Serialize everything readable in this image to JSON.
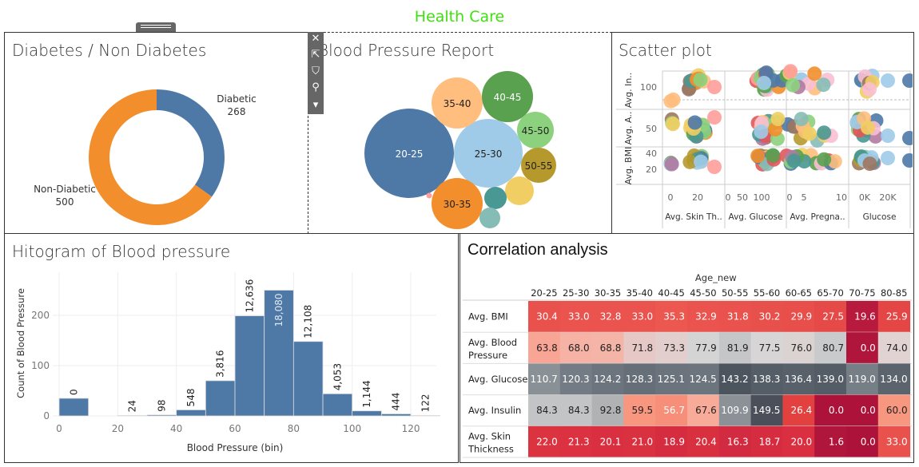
{
  "dashboard": {
    "title": "Health Care",
    "title_color": "#3ee00f"
  },
  "toolbar": {
    "icons": [
      "close-icon",
      "popout-icon",
      "filter-icon",
      "pin-icon",
      "more-dropdown-icon"
    ],
    "close": "✕",
    "popout": "⇱",
    "filter": "⛉",
    "pin": "⚲",
    "more": "▾"
  },
  "donut": {
    "title": "Diabetes / Non Diabetes",
    "slices": [
      {
        "label": "Diabetic",
        "value": 268,
        "value_text": "268",
        "color": "#4e79a7"
      },
      {
        "label": "Non-Diabetic",
        "value": 500,
        "value_text": "500",
        "color": "#f28e2b"
      }
    ]
  },
  "bubbles": {
    "title": "Blood Pressure Report",
    "items": [
      {
        "label": "20-25",
        "color": "#4e79a7",
        "text_color": "#ffffff"
      },
      {
        "label": "25-30",
        "color": "#a0cbe8",
        "text_color": "#222"
      },
      {
        "label": "30-35",
        "color": "#f28e2b",
        "text_color": "#222"
      },
      {
        "label": "35-40",
        "color": "#ffbe7d",
        "text_color": "#222"
      },
      {
        "label": "40-45",
        "color": "#59a14f",
        "text_color": "#ffffff"
      },
      {
        "label": "45-50",
        "color": "#8cd17d",
        "text_color": "#222"
      },
      {
        "label": "50-55",
        "color": "#b6992d",
        "text_color": "#222"
      },
      {
        "label": "",
        "color": "#f1ce63"
      },
      {
        "label": "",
        "color": "#499894"
      },
      {
        "label": "",
        "color": "#86bcb6"
      },
      {
        "label": "",
        "color": "#ff9d9a"
      }
    ]
  },
  "scatter": {
    "title": "Scatter plot",
    "row_labels": [
      "Avg. In..",
      "Avg. A..",
      "Avg. BMI"
    ],
    "row_ticks": [
      [
        "100"
      ],
      [
        "50"
      ],
      [
        "40",
        "20"
      ]
    ],
    "col_labels": [
      "Avg. Skin Th..",
      "Avg. Glucose",
      "Avg. Pregna..",
      "Glucose"
    ],
    "col_ticks": [
      [
        "0",
        "20"
      ],
      [
        "0",
        "50",
        "100"
      ],
      [
        "0",
        "5",
        "10"
      ],
      [
        "0K",
        "20K"
      ]
    ]
  },
  "chart_data": [
    {
      "type": "bar",
      "title": "Hitogram of Blood pressure",
      "xlabel": "Blood Pressure (bin)",
      "ylabel": "Count of Blood Pressure",
      "bin_width": 10,
      "xlim": [
        0,
        130
      ],
      "ylim": [
        0,
        270
      ],
      "x_ticks": [
        "0",
        "20",
        "40",
        "60",
        "80",
        "100",
        "120"
      ],
      "y_ticks": [
        "0",
        "100",
        "200"
      ],
      "grid": true,
      "bins": [
        0,
        20,
        30,
        40,
        50,
        60,
        70,
        80,
        90,
        100,
        110,
        120
      ],
      "values": [
        35,
        1,
        2,
        12,
        70,
        199,
        250,
        148,
        44,
        10,
        4,
        1
      ],
      "labels": [
        "0",
        "24",
        "98",
        "548",
        "3,816",
        "12,636",
        "18,080",
        "12,108",
        "4,053",
        "1,144",
        "444",
        "122"
      ],
      "color": "#4e79a7"
    },
    {
      "type": "heatmap",
      "title": "Correlation analysis",
      "column_header": "Age_new",
      "columns": [
        "20-25",
        "25-30",
        "30-35",
        "35-40",
        "40-45",
        "45-50",
        "50-55",
        "55-60",
        "60-65",
        "65-70",
        "70-75",
        "80-85"
      ],
      "rows": [
        {
          "label": "Avg. BMI",
          "values": [
            "30.4",
            "33.0",
            "32.8",
            "33.0",
            "35.3",
            "32.9",
            "31.8",
            "30.2",
            "29.9",
            "27.5",
            "19.6",
            "25.9"
          ],
          "colors": [
            "#e9514c",
            "#ea534e",
            "#ea534e",
            "#ea534e",
            "#ec574f",
            "#ea534e",
            "#e9524d",
            "#e8504c",
            "#e84f4b",
            "#e64a48",
            "#b81a3e",
            "#e44646"
          ]
        },
        {
          "label": "Avg. Blood Pressure",
          "values": [
            "63.8",
            "68.0",
            "68.8",
            "71.8",
            "73.3",
            "77.9",
            "81.9",
            "77.5",
            "76.0",
            "80.7",
            "0.0",
            "74.0"
          ],
          "colors": [
            "#f8a596",
            "#f6b2a5",
            "#f4b4a8",
            "#e6c9c6",
            "#e2cfcd",
            "#d4d4d4",
            "#c5c6c7",
            "#d7d5d5",
            "#dbd3d2",
            "#c9cacb",
            "#b0163c",
            "#e0d3d2"
          ]
        },
        {
          "label": "Avg. Glucose",
          "values": [
            "110.7",
            "120.3",
            "124.2",
            "128.3",
            "125.1",
            "124.5",
            "143.2",
            "138.3",
            "136.4",
            "139.0",
            "119.0",
            "134.0"
          ],
          "colors": [
            "#8a9196",
            "#737c84",
            "#6c757d",
            "#666f78",
            "#6b747c",
            "#6c757d",
            "#4c545e",
            "#555d67",
            "#58606a",
            "#545c66",
            "#767f86",
            "#5b636c"
          ]
        },
        {
          "label": "Avg. Insulin",
          "values": [
            "84.3",
            "84.3",
            "92.8",
            "59.5",
            "56.7",
            "67.6",
            "109.9",
            "149.5",
            "26.4",
            "0.0",
            "0.0",
            "60.0"
          ],
          "colors": [
            "#c3c4c5",
            "#c3c4c5",
            "#b0b2b3",
            "#f8967f",
            "#f68e79",
            "#f9ab99",
            "#8b9196",
            "#4a4f5a",
            "#e3413f",
            "#ad133a",
            "#ad133a",
            "#f8977f"
          ]
        },
        {
          "label": "Avg. Skin Thickness",
          "values": [
            "22.0",
            "21.3",
            "20.1",
            "21.0",
            "18.9",
            "20.4",
            "16.3",
            "18.7",
            "20.0",
            "1.6",
            "0.0",
            "33.0"
          ],
          "colors": [
            "#dc3340",
            "#db3140",
            "#d92f40",
            "#da3140",
            "#d62c40",
            "#d93040",
            "#d22a40",
            "#d62c40",
            "#d92f40",
            "#b0153b",
            "#ad133a",
            "#e9514c"
          ]
        }
      ]
    }
  ]
}
